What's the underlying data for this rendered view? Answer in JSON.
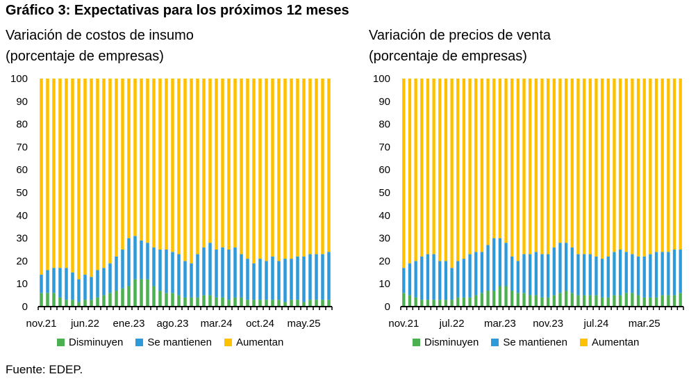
{
  "title": "Gráfico 3: Expectativas para los próximos 12 meses",
  "footer": "Fuente: EDEP.",
  "colors": {
    "disminuyen": "#4caf50",
    "mantienen": "#2e9ad9",
    "aumentan": "#ffc000"
  },
  "chart_data": [
    {
      "type": "bar",
      "stacked": true,
      "title_lines": [
        "Variación de costos de insumo",
        "(porcentaje de empresas)"
      ],
      "ylim": [
        0,
        100
      ],
      "yticks": [
        0,
        10,
        20,
        30,
        40,
        50,
        60,
        70,
        80,
        90,
        100
      ],
      "xtick_labels": [
        {
          "index": 0,
          "label": "nov.21"
        },
        {
          "index": 7,
          "label": "jun.22"
        },
        {
          "index": 14,
          "label": "ene.23"
        },
        {
          "index": 21,
          "label": "ago.23"
        },
        {
          "index": 28,
          "label": "mar.24"
        },
        {
          "index": 35,
          "label": "oct.24"
        },
        {
          "index": 42,
          "label": "may.25"
        }
      ],
      "legend": [
        "Disminuyen",
        "Se mantienen",
        "Aumentan"
      ],
      "series": [
        {
          "name": "Disminuyen",
          "values": [
            6,
            6,
            6,
            4,
            3,
            3,
            2,
            3,
            3,
            4,
            5,
            6,
            7,
            8,
            9,
            12,
            12,
            12,
            9,
            7,
            6,
            6,
            5,
            4,
            4,
            4,
            5,
            5,
            4,
            4,
            3,
            4,
            4,
            3,
            3,
            3,
            3,
            3,
            3,
            2,
            3,
            3,
            2,
            3,
            3,
            3,
            3
          ]
        },
        {
          "name": "Se mantienen",
          "values": [
            8,
            10,
            11,
            13,
            14,
            12,
            10,
            11,
            10,
            12,
            12,
            13,
            15,
            17,
            21,
            19,
            17,
            16,
            17,
            18,
            19,
            18,
            18,
            16,
            15,
            19,
            21,
            23,
            21,
            22,
            22,
            22,
            19,
            18,
            16,
            18,
            17,
            19,
            17,
            19,
            18,
            19,
            20,
            20,
            20,
            20,
            21
          ]
        },
        {
          "name": "Aumentan",
          "values": [
            86,
            84,
            83,
            83,
            83,
            85,
            88,
            86,
            87,
            84,
            83,
            81,
            78,
            75,
            70,
            69,
            71,
            72,
            74,
            75,
            75,
            76,
            77,
            80,
            81,
            77,
            74,
            72,
            75,
            74,
            75,
            74,
            77,
            79,
            81,
            79,
            80,
            78,
            80,
            79,
            79,
            78,
            78,
            77,
            77,
            77,
            76
          ]
        }
      ]
    },
    {
      "type": "bar",
      "stacked": true,
      "title_lines": [
        "Variación de precios de venta",
        "(porcentaje de empresas)"
      ],
      "ylim": [
        0,
        100
      ],
      "yticks": [
        0,
        10,
        20,
        30,
        40,
        50,
        60,
        70,
        80,
        90,
        100
      ],
      "xtick_labels": [
        {
          "index": 0,
          "label": "nov.21"
        },
        {
          "index": 8,
          "label": "jul.22"
        },
        {
          "index": 16,
          "label": "mar.23"
        },
        {
          "index": 24,
          "label": "nov.23"
        },
        {
          "index": 32,
          "label": "jul.24"
        },
        {
          "index": 40,
          "label": "mar.25"
        }
      ],
      "legend": [
        "Disminuyen",
        "Se mantienen",
        "Aumentan"
      ],
      "series": [
        {
          "name": "Disminuyen",
          "values": [
            6,
            5,
            4,
            3,
            3,
            3,
            3,
            3,
            3,
            4,
            4,
            4,
            5,
            6,
            7,
            7,
            9,
            9,
            7,
            6,
            6,
            5,
            5,
            4,
            4,
            5,
            6,
            7,
            6,
            5,
            5,
            5,
            5,
            4,
            4,
            5,
            5,
            6,
            6,
            5,
            4,
            4,
            4,
            5,
            5,
            5,
            6
          ]
        },
        {
          "name": "Se mantienen",
          "values": [
            11,
            14,
            16,
            19,
            20,
            20,
            17,
            17,
            14,
            16,
            17,
            19,
            19,
            18,
            20,
            23,
            21,
            19,
            15,
            14,
            17,
            18,
            19,
            19,
            19,
            21,
            22,
            21,
            20,
            18,
            18,
            18,
            17,
            17,
            18,
            19,
            20,
            18,
            17,
            17,
            18,
            19,
            20,
            19,
            19,
            20,
            19
          ]
        },
        {
          "name": "Aumentan",
          "values": [
            83,
            81,
            80,
            78,
            77,
            77,
            80,
            80,
            83,
            80,
            79,
            77,
            76,
            76,
            73,
            70,
            70,
            72,
            78,
            80,
            77,
            77,
            76,
            77,
            77,
            74,
            72,
            72,
            74,
            77,
            77,
            77,
            78,
            79,
            78,
            76,
            75,
            76,
            77,
            78,
            78,
            77,
            76,
            76,
            76,
            75,
            75
          ]
        }
      ]
    }
  ]
}
